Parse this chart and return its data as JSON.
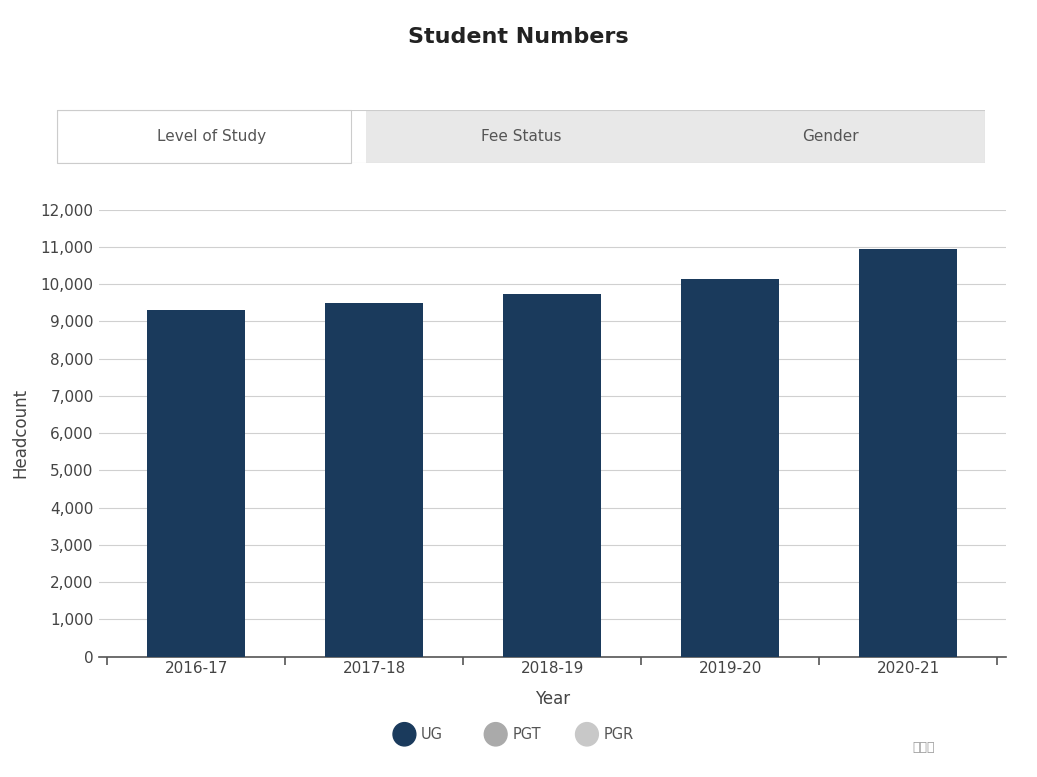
{
  "title": "Student Numbers",
  "years": [
    "2016-17",
    "2017-18",
    "2018-19",
    "2019-20",
    "2020-21"
  ],
  "values": [
    9300,
    9500,
    9750,
    10150,
    10950
  ],
  "bar_color": "#1a3a5c",
  "ylabel": "Headcount",
  "xlabel": "Year",
  "ylim": [
    0,
    12000
  ],
  "yticks": [
    0,
    1000,
    2000,
    3000,
    4000,
    5000,
    6000,
    7000,
    8000,
    9000,
    10000,
    11000,
    12000
  ],
  "background_color": "#ffffff",
  "plot_bg_color": "#ffffff",
  "grid_color": "#d0d0d0",
  "tab_labels": [
    "Level of Study",
    "Fee Status",
    "Gender"
  ],
  "tab_active": 0,
  "tab_bg_color": "#e8e8e8",
  "tab_active_color": "#ffffff",
  "legend_items": [
    "UG",
    "PGT",
    "PGR"
  ],
  "legend_colors": [
    "#1a3a5c",
    "#aaaaaa",
    "#c8c8c8"
  ],
  "title_fontsize": 16,
  "axis_label_fontsize": 12,
  "tick_fontsize": 11
}
